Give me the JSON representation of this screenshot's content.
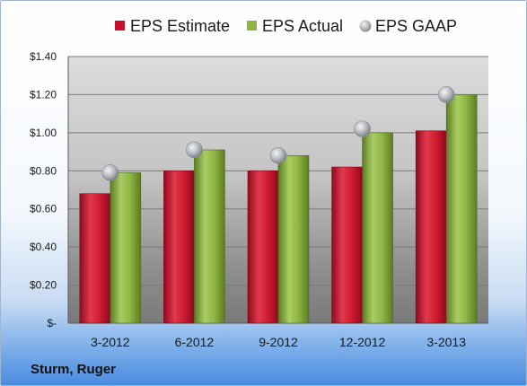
{
  "company_label": "Sturm, Ruger",
  "colors": {
    "estimate": "#c8102e",
    "actual": "#8db53f",
    "gaap": "#b8bcc2"
  },
  "chart_data": {
    "type": "bar",
    "categories": [
      "3-2012",
      "6-2012",
      "9-2012",
      "12-2012",
      "3-2013"
    ],
    "series": [
      {
        "name": "EPS Estimate",
        "kind": "bar",
        "values": [
          0.68,
          0.8,
          0.8,
          0.82,
          1.01
        ]
      },
      {
        "name": "EPS Actual",
        "kind": "bar",
        "values": [
          0.79,
          0.91,
          0.88,
          1.0,
          1.2
        ]
      },
      {
        "name": "EPS GAAP",
        "kind": "scatter",
        "values": [
          0.79,
          0.91,
          0.88,
          1.02,
          1.2
        ]
      }
    ],
    "ylim": [
      0,
      1.4
    ],
    "yticks": [
      {
        "value": 0,
        "label": "$-"
      },
      {
        "value": 0.2,
        "label": "$0.20"
      },
      {
        "value": 0.4,
        "label": "$0.40"
      },
      {
        "value": 0.6,
        "label": "$0.60"
      },
      {
        "value": 0.8,
        "label": "$0.80"
      },
      {
        "value": 1.0,
        "label": "$1.00"
      },
      {
        "value": 1.2,
        "label": "$1.20"
      },
      {
        "value": 1.4,
        "label": "$1.40"
      }
    ],
    "grid": true,
    "legend_position": "top"
  }
}
